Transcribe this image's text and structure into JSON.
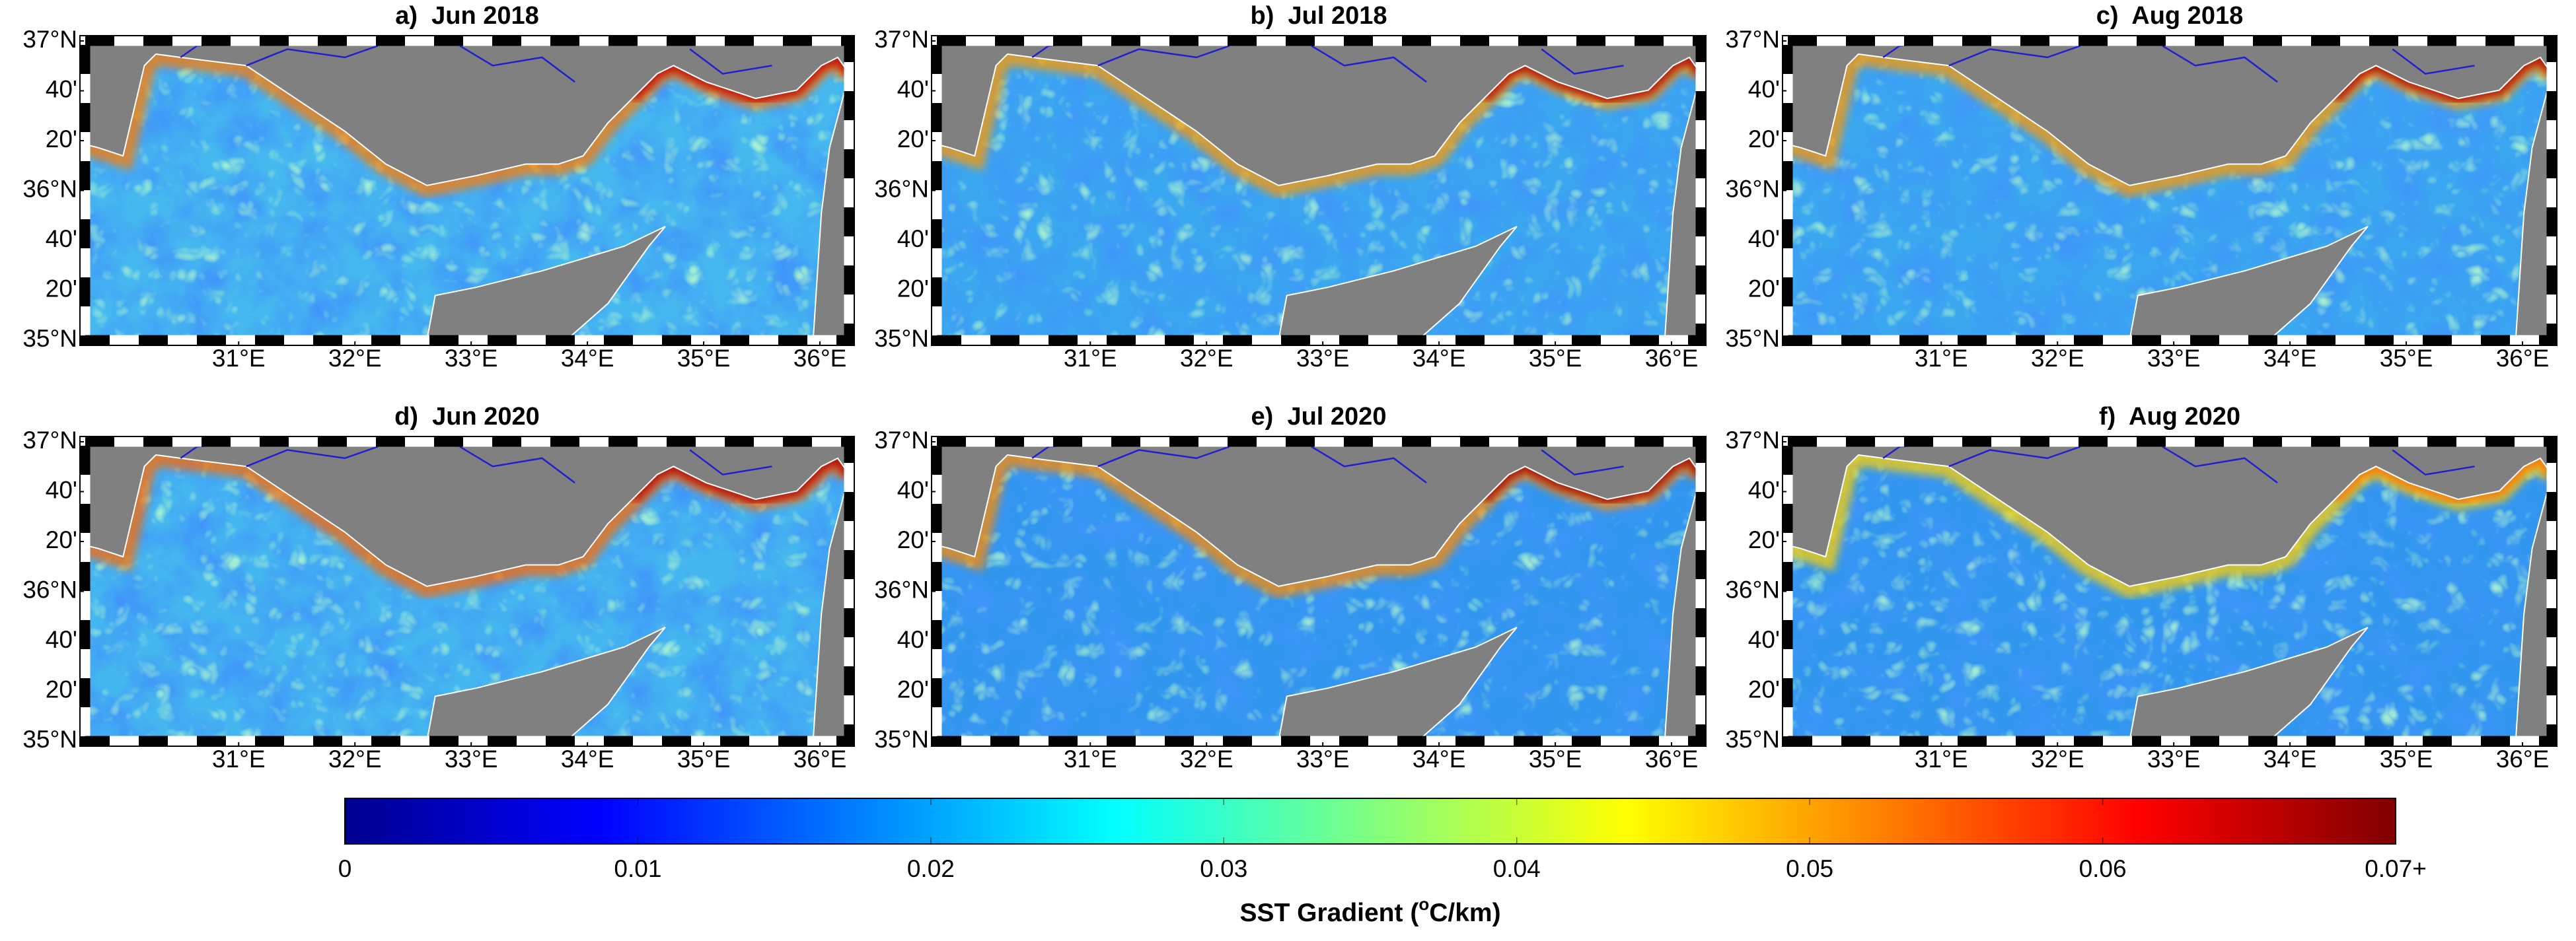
{
  "panels": [
    {
      "title": "a)  Jun 2018"
    },
    {
      "title": "b)  Jul 2018"
    },
    {
      "title": "c)  Aug 2018"
    },
    {
      "title": "d)  Jun 2020"
    },
    {
      "title": "e)  Jul 2020"
    },
    {
      "title": "f)  Aug 2020"
    }
  ],
  "map_axes": {
    "xlim": [
      29.68,
      36.25
    ],
    "ylim": [
      35,
      37
    ],
    "lat_ticks": [
      {
        "value": 37,
        "label": "37°N"
      },
      {
        "value": 36.6667,
        "label": "40'"
      },
      {
        "value": 36.3333,
        "label": "20'"
      },
      {
        "value": 36,
        "label": "36°N"
      },
      {
        "value": 35.6667,
        "label": "40'"
      },
      {
        "value": 35.3333,
        "label": "20'"
      },
      {
        "value": 35,
        "label": "35°N"
      }
    ],
    "lon_ticks": [
      {
        "value": 31,
        "label": "31°E"
      },
      {
        "value": 32,
        "label": "32°E"
      },
      {
        "value": 33,
        "label": "33°E"
      },
      {
        "value": 34,
        "label": "34°E"
      },
      {
        "value": 35,
        "label": "35°E"
      },
      {
        "value": 36,
        "label": "36°E"
      }
    ]
  },
  "colorbar": {
    "label": "SST Gradient (",
    "label_sup": "o",
    "label_end": "C/km)",
    "lim": [
      0,
      0.07
    ],
    "ticks": [
      0,
      0.01,
      0.02,
      0.03,
      0.04,
      0.05,
      0.06,
      {
        "value": 0.07,
        "label": "0.07+"
      }
    ]
  }
}
